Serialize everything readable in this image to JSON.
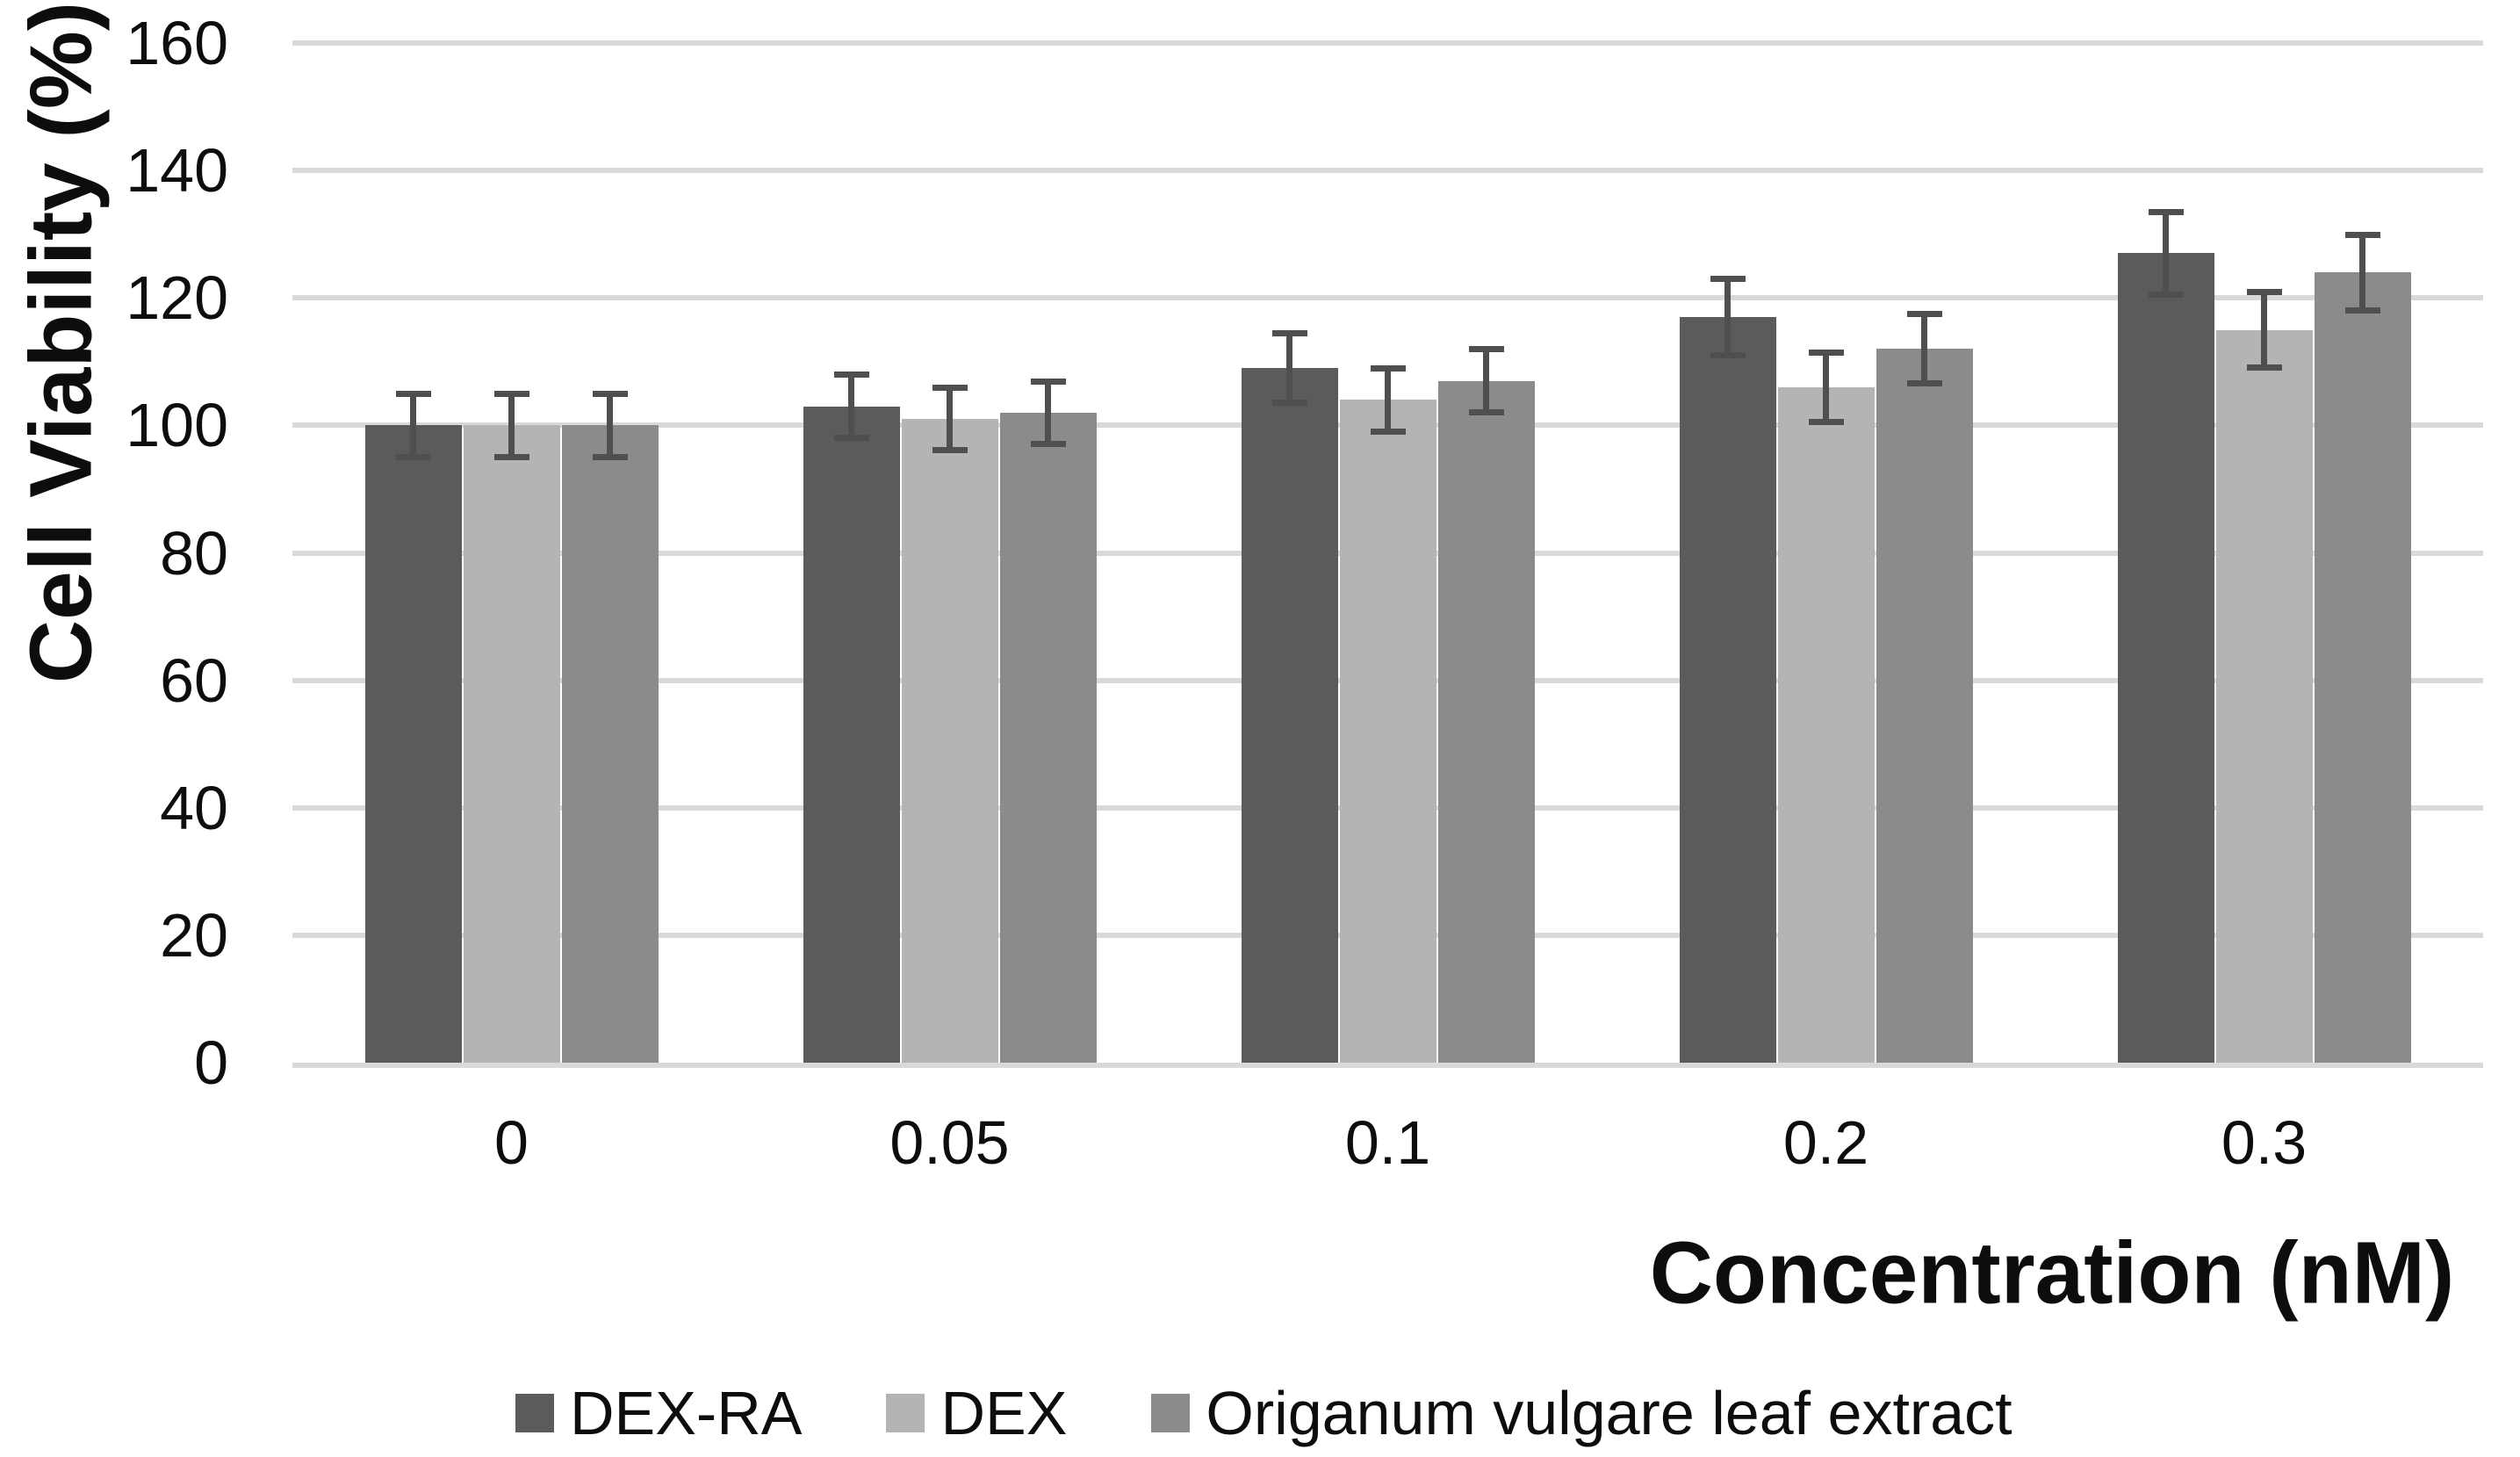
{
  "chart_data": {
    "type": "bar",
    "title": "",
    "categories": [
      "0",
      "0.05",
      "0.1",
      "0.2",
      "0.3"
    ],
    "series": [
      {
        "name": "DEX-RA",
        "color": "#5b5b5b",
        "values": [
          100,
          103,
          109,
          117,
          127
        ],
        "errors": [
          5,
          5,
          5.5,
          6,
          6.5
        ]
      },
      {
        "name": "DEX",
        "color": "#b4b4b4",
        "values": [
          100,
          101,
          104,
          106,
          115
        ],
        "errors": [
          5,
          5,
          5,
          5.5,
          6
        ]
      },
      {
        "name": "Origanum vulgare leaf extract",
        "color": "#8b8b8b",
        "values": [
          100,
          102,
          107,
          112,
          124
        ],
        "errors": [
          5,
          5,
          5,
          5.5,
          6
        ]
      }
    ],
    "xlabel": "Concentration (nM)",
    "ylabel": "Cell Viability (%)",
    "ylim": [
      0,
      160
    ],
    "yticks": [
      0,
      20,
      40,
      60,
      80,
      100,
      120,
      140,
      160
    ],
    "grid": true,
    "legend_position": "bottom",
    "colors": {
      "gridline": "#d9d9d9",
      "error_bar": "#4f4f4f",
      "text": "#0d0d0d"
    }
  }
}
